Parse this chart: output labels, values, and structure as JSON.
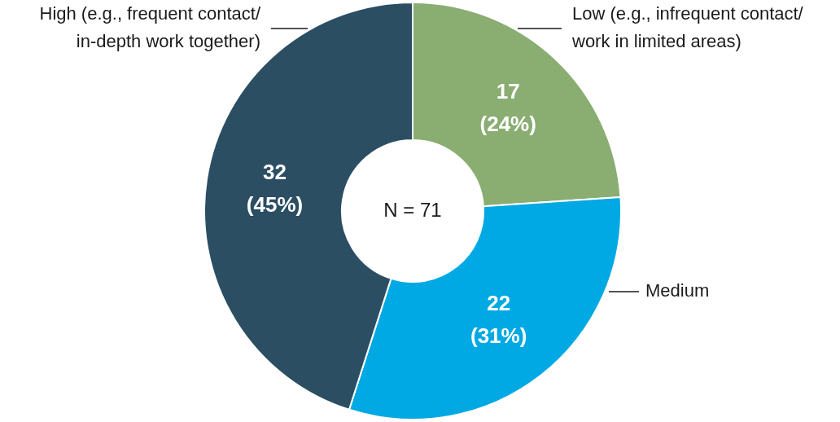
{
  "chart_data": {
    "type": "donut",
    "categories": [
      "Low (e.g., infrequent contact/ work in limited areas)",
      "Medium",
      "High (e.g., frequent contact/ in-depth work together)"
    ],
    "values": [
      17,
      22,
      32
    ],
    "colors": [
      "#8aad72",
      "#00a9e3",
      "#2b4e63"
    ],
    "value_labels": [
      "17\n(24%)",
      "22\n(31%)",
      "32\n(45%)"
    ],
    "annotations": [
      "N = 71"
    ],
    "legend": false
  }
}
